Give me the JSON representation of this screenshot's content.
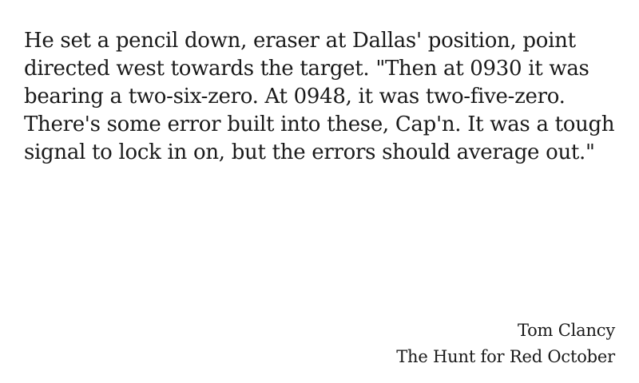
{
  "quote": {
    "text": "He set a pencil down, eraser at Dallas' position, point directed west towards the target. \"Then at 0930 it was bearing a two-six-zero. At 0948, it was two-five-zero. There's some error built into these, Cap'n. It was a tough signal to lock in on, but the errors should average out.\""
  },
  "attribution": {
    "author": "Tom Clancy",
    "work": "The Hunt for Red October"
  }
}
